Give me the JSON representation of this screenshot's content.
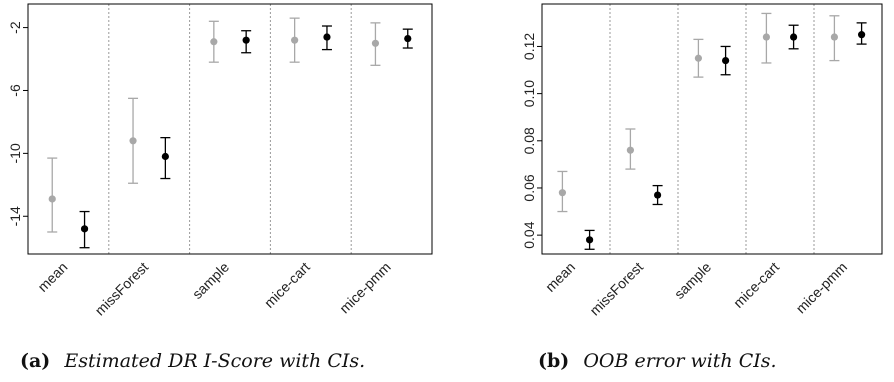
{
  "chart_data": [
    {
      "type": "scatter",
      "ylim": [
        -16.4,
        -0.5
      ],
      "yticks": [
        -2,
        -6,
        -10,
        -14
      ],
      "categories": [
        "mean",
        "missForest",
        "sample",
        "mice-cart",
        "mice-pmm"
      ],
      "series": [
        {
          "color": "#a8a8a8",
          "values": [
            -12.9,
            -9.2,
            -2.9,
            -2.8,
            -3.0
          ],
          "lower": [
            -15.0,
            -11.9,
            -4.2,
            -4.2,
            -4.4
          ],
          "upper": [
            -10.3,
            -6.5,
            -1.6,
            -1.4,
            -1.7
          ]
        },
        {
          "color": "#000000",
          "values": [
            -14.8,
            -10.2,
            -2.8,
            -2.6,
            -2.7
          ],
          "lower": [
            -16.0,
            -11.6,
            -3.6,
            -3.4,
            -3.3
          ],
          "upper": [
            -13.7,
            -9.0,
            -2.2,
            -1.9,
            -2.1
          ]
        }
      ],
      "caption_label": "(a)",
      "caption_text": "Estimated DR I-Score with CIs."
    },
    {
      "type": "scatter",
      "ylim": [
        0.032,
        0.138
      ],
      "yticks": [
        "0.04",
        "0.06",
        "0.08",
        "0.10",
        "0.12"
      ],
      "categories": [
        "mean",
        "missForest",
        "sample",
        "mice-cart",
        "mice-pmm"
      ],
      "series": [
        {
          "color": "#a8a8a8",
          "values": [
            0.058,
            0.076,
            0.115,
            0.124,
            0.124
          ],
          "lower": [
            0.05,
            0.068,
            0.107,
            0.113,
            0.114
          ],
          "upper": [
            0.067,
            0.085,
            0.123,
            0.134,
            0.133
          ]
        },
        {
          "color": "#000000",
          "values": [
            0.038,
            0.057,
            0.114,
            0.124,
            0.125
          ],
          "lower": [
            0.034,
            0.053,
            0.108,
            0.119,
            0.121
          ],
          "upper": [
            0.042,
            0.061,
            0.12,
            0.129,
            0.13
          ]
        }
      ],
      "caption_label": "(b)",
      "caption_text": "OOB error with CIs."
    }
  ]
}
